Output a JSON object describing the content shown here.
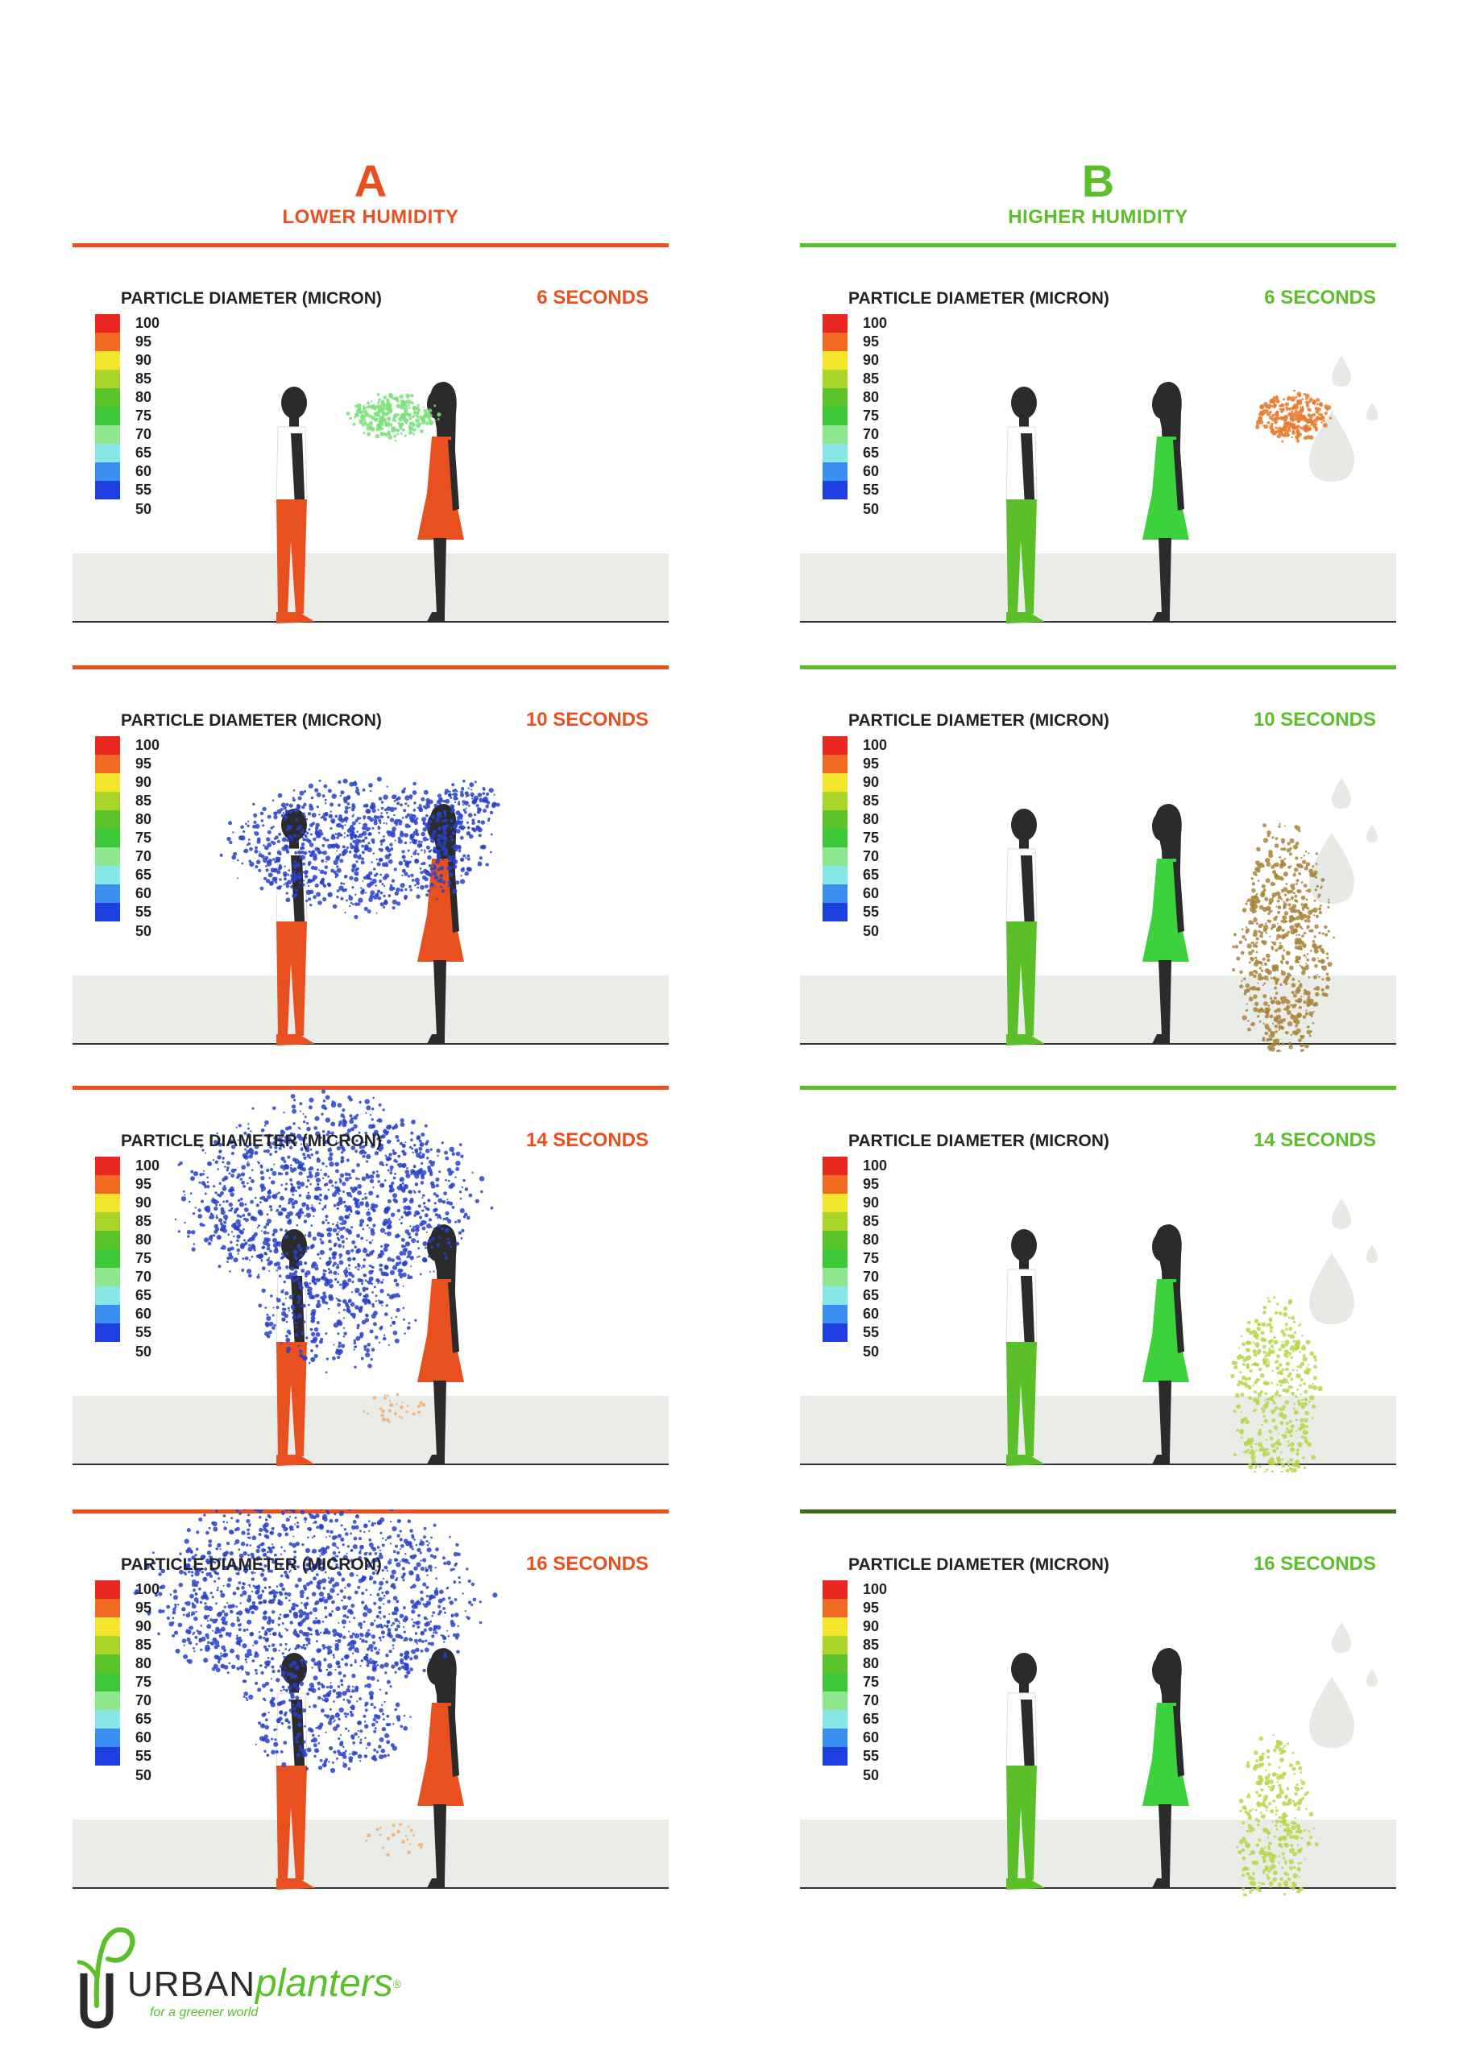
{
  "columns": {
    "a": {
      "letter": "A",
      "subtitle": "LOWER HUMIDITY",
      "color": "#e8511f"
    },
    "b": {
      "letter": "B",
      "subtitle": "HIGHER HUMIDITY",
      "color": "#5bbf2a"
    }
  },
  "legend": {
    "title": "PARTICLE DIAMETER (MICRON)",
    "items": [
      {
        "label": "100",
        "color": "#e8261f"
      },
      {
        "label": "95",
        "color": "#f06a22"
      },
      {
        "label": "90",
        "color": "#f3e52b"
      },
      {
        "label": "85",
        "color": "#a9d52a"
      },
      {
        "label": "80",
        "color": "#5bc42a"
      },
      {
        "label": "75",
        "color": "#3fc73a"
      },
      {
        "label": "70",
        "color": "#8ee78e"
      },
      {
        "label": "65",
        "color": "#87e7e7"
      },
      {
        "label": "60",
        "color": "#3b8ff0"
      },
      {
        "label": "55",
        "color": "#1f3fe0"
      }
    ],
    "last_label": "50"
  },
  "panels": {
    "a1": {
      "time": "6 SECONDS",
      "particle_color": "#7be07b"
    },
    "a2": {
      "time": "10 SECONDS",
      "particle_color": "#2841c8"
    },
    "a3": {
      "time": "14 SECONDS",
      "particle_color": "#2841c8"
    },
    "a4": {
      "time": "16 SECONDS",
      "particle_color": "#2841c8"
    },
    "b1": {
      "time": "6 SECONDS",
      "particle_color": "#e8792c"
    },
    "b2": {
      "time": "10 SECONDS",
      "particle_color": "#a8843a"
    },
    "b3": {
      "time": "14 SECONDS",
      "particle_color": "#b9d64a"
    },
    "b4": {
      "time": "16 SECONDS",
      "particle_color": "#b9d64a"
    }
  },
  "logo": {
    "brand_part1": "URBAN",
    "brand_part2": "planters",
    "registered": "®",
    "tagline": "for a greener world"
  }
}
